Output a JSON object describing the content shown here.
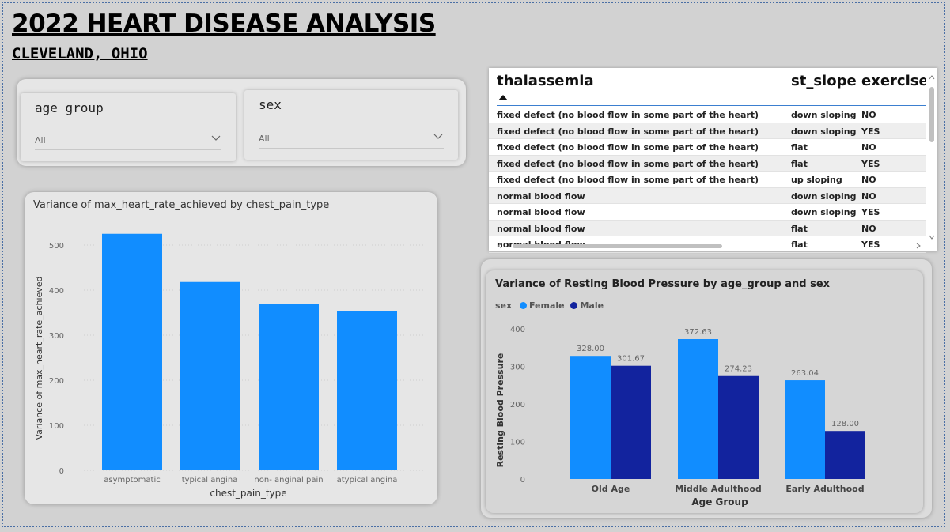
{
  "header": {
    "title": "2022 HEART DISEASE ANALYSIS",
    "subtitle": "CLEVELAND, OHIO"
  },
  "slicers": [
    {
      "label": "age_group",
      "value": "All"
    },
    {
      "label": "sex",
      "value": "All"
    }
  ],
  "table": {
    "columns": [
      "thalassemia",
      "st_slope",
      "exercise_"
    ],
    "rows": [
      [
        "fixed defect (no blood flow in some part of the heart)",
        "down sloping",
        "NO"
      ],
      [
        "fixed defect (no blood flow in some part of the heart)",
        "down sloping",
        "YES"
      ],
      [
        "fixed defect (no blood flow in some part of the heart)",
        "flat",
        "NO"
      ],
      [
        "fixed defect (no blood flow in some part of the heart)",
        "flat",
        "YES"
      ],
      [
        "fixed defect (no blood flow in some part of the heart)",
        "up sloping",
        "NO"
      ],
      [
        "normal blood flow",
        "down sloping",
        "NO"
      ],
      [
        "normal blood flow",
        "down sloping",
        "YES"
      ],
      [
        "normal blood flow",
        "flat",
        "NO"
      ],
      [
        "normal blood flow",
        "flat",
        "YES"
      ]
    ]
  },
  "colors": {
    "female": "#118dff",
    "male": "#12239e",
    "bar": "#118dff"
  },
  "chart1": {
    "title": "Variance of max_heart_rate_achieved by chest_pain_type"
  },
  "chart2": {
    "title": "Variance of Resting Blood Pressure by age_group and sex",
    "legend_title": "sex"
  },
  "chart_data": [
    {
      "type": "bar",
      "title": "Variance of max_heart_rate_achieved by chest_pain_type",
      "xlabel": "chest_pain_type",
      "ylabel": "Variance of max_heart_rate_achieved",
      "categories": [
        "asymptomatic",
        "typical angina",
        "non- anginal pain",
        "atypical angina"
      ],
      "values": [
        525,
        418,
        370,
        354
      ],
      "yticks": [
        0,
        100,
        200,
        300,
        400,
        500
      ],
      "ylim": [
        0,
        560
      ],
      "grid": true
    },
    {
      "type": "bar",
      "title": "Variance of Resting Blood Pressure by age_group and sex",
      "xlabel": "Age Group",
      "ylabel": "Resting Blood Pressure",
      "categories": [
        "Old Age",
        "Middle Adulthood",
        "Early Adulthood"
      ],
      "series": [
        {
          "name": "Female",
          "values": [
            328.0,
            372.63,
            263.04
          ],
          "labels": [
            "328.00",
            "372.63",
            "263.04"
          ]
        },
        {
          "name": "Male",
          "values": [
            301.67,
            274.23,
            128.0
          ],
          "labels": [
            "301.67",
            "274.23",
            "128.00"
          ]
        }
      ],
      "yticks": [
        0,
        100,
        200,
        300,
        400
      ],
      "ylim": [
        0,
        400
      ],
      "legend": "top-left"
    }
  ]
}
